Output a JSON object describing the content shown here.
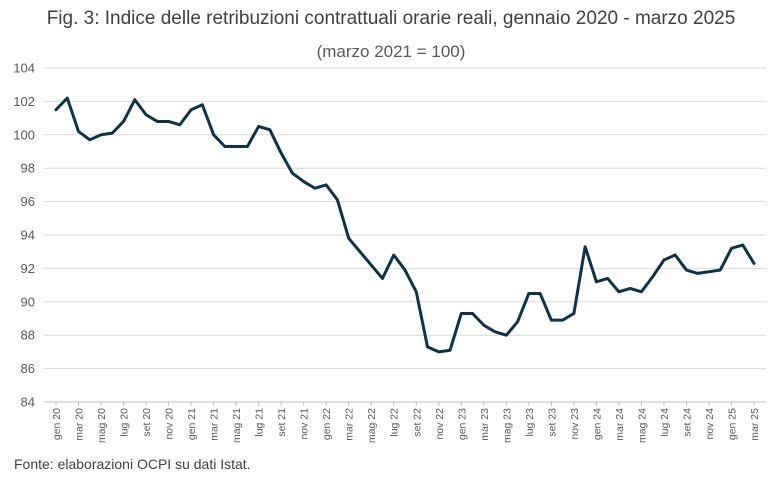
{
  "title": "Fig. 3: Indice delle retribuzioni contrattuali orarie reali, gennaio 2020 - marzo 2025",
  "subtitle": "(marzo 2021 = 100)",
  "source": "Fonte: elaborazioni OCPI su dati Istat.",
  "colors": {
    "line": "#0d3349",
    "gridline": "#d9d9d9",
    "axis": "#bfbfbf"
  },
  "chart_data": {
    "type": "line",
    "grid": "horizontal",
    "ylim": [
      84,
      104
    ],
    "yticks": [
      84,
      86,
      88,
      90,
      92,
      94,
      96,
      98,
      100,
      102,
      104
    ],
    "x": [
      "gen 20",
      "feb 20",
      "mar 20",
      "apr 20",
      "mag 20",
      "giu 20",
      "lug 20",
      "ago 20",
      "set 20",
      "ott 20",
      "nov 20",
      "dic 20",
      "gen 21",
      "feb 21",
      "mar 21",
      "apr 21",
      "mag 21",
      "giu 21",
      "lug 21",
      "ago 21",
      "set 21",
      "ott 21",
      "nov 21",
      "dic 21",
      "gen 22",
      "feb 22",
      "mar 22",
      "apr 22",
      "mag 22",
      "giu 22",
      "lug 22",
      "ago 22",
      "set 22",
      "ott 22",
      "nov 22",
      "dic 22",
      "gen 23",
      "feb 23",
      "mar 23",
      "apr 23",
      "mag 23",
      "giu 23",
      "lug 23",
      "ago 23",
      "set 23",
      "ott 23",
      "nov 23",
      "dic 23",
      "gen 24",
      "feb 24",
      "mar 24",
      "apr 24",
      "mag 24",
      "giu 24",
      "lug 24",
      "ago 24",
      "set 24",
      "ott 24",
      "nov 24",
      "dic 24",
      "gen 25",
      "feb 25",
      "mar 25"
    ],
    "xtick_labels": [
      "gen 20",
      "mar 20",
      "mag 20",
      "lug 20",
      "set 20",
      "nov 20",
      "gen 21",
      "mar 21",
      "mag 21",
      "lug 21",
      "set 21",
      "nov 21",
      "gen 22",
      "mar 22",
      "mag 22",
      "lug 22",
      "set 22",
      "nov 22",
      "gen 23",
      "mar 23",
      "mag 23",
      "lug 23",
      "set 23",
      "nov 23",
      "gen 24",
      "mar 24",
      "mag 24",
      "lug 24",
      "set 24",
      "nov 24",
      "gen 25",
      "mar 25"
    ],
    "series": [
      {
        "values": [
          101.5,
          102.2,
          100.2,
          99.7,
          100.0,
          100.1,
          100.8,
          102.1,
          101.2,
          100.8,
          100.8,
          100.6,
          101.5,
          101.8,
          100.0,
          99.3,
          99.3,
          99.3,
          100.5,
          100.3,
          98.9,
          97.7,
          97.2,
          96.8,
          97.0,
          96.1,
          93.8,
          93.0,
          92.2,
          91.4,
          92.8,
          91.9,
          90.6,
          87.3,
          87.0,
          87.1,
          89.3,
          89.3,
          88.6,
          88.2,
          88.0,
          88.8,
          90.5,
          90.5,
          88.9,
          88.9,
          89.3,
          93.3,
          91.2,
          91.4,
          90.6,
          90.8,
          90.6,
          91.5,
          92.5,
          92.8,
          91.9,
          91.7,
          91.8,
          91.9,
          93.2,
          93.4,
          92.3
        ]
      }
    ]
  }
}
